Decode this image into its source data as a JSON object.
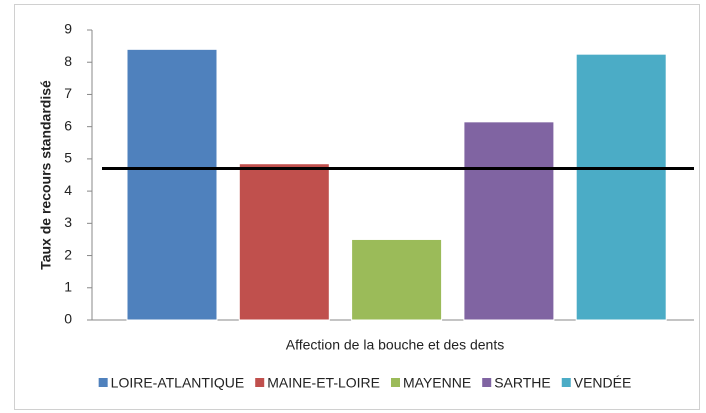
{
  "chart_data": {
    "type": "bar",
    "x_label": "Affection de la bouche et des dents",
    "y_label": "Taux de recours standardisé",
    "series": [
      {
        "name": "LOIRE-ATLANTIQUE",
        "color": "#4f81bd",
        "values": [
          8.4
        ]
      },
      {
        "name": "MAINE-ET-LOIRE",
        "color": "#c0504d",
        "values": [
          4.85
        ]
      },
      {
        "name": "MAYENNE",
        "color": "#9bbb59",
        "values": [
          2.5
        ]
      },
      {
        "name": "SARTHE",
        "color": "#8064a2",
        "values": [
          6.15
        ]
      },
      {
        "name": "VENDÉE",
        "color": "#4bacc6",
        "values": [
          8.25
        ]
      }
    ],
    "reference_line": 4.7,
    "ylim": [
      0,
      9
    ],
    "yticks": [
      0,
      1,
      2,
      3,
      4,
      5,
      6,
      7,
      8,
      9
    ],
    "grid": false,
    "legend": "bottom"
  }
}
